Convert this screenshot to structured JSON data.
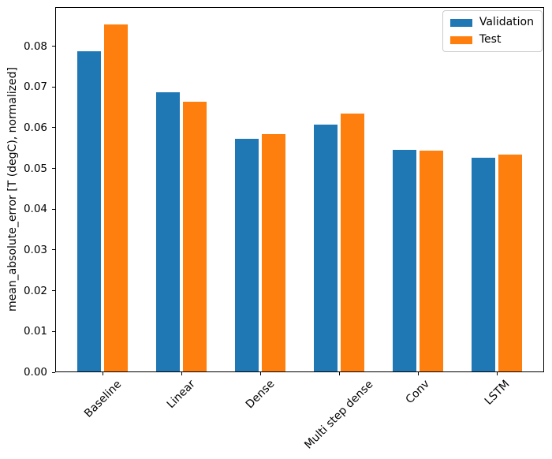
{
  "window": {
    "background": "#ffffff"
  },
  "chart_data": {
    "type": "bar",
    "title": "",
    "xlabel": "",
    "ylabel": "mean_absolute_error [T (degC), normalized]",
    "categories": [
      "Baseline",
      "Linear",
      "Dense",
      "Multi step dense",
      "Conv",
      "LSTM"
    ],
    "series": [
      {
        "name": "Validation",
        "color": "#1f77b4",
        "values": [
          0.0785,
          0.0686,
          0.0571,
          0.0606,
          0.0544,
          0.0524
        ]
      },
      {
        "name": "Test",
        "color": "#ff7f0e",
        "values": [
          0.0851,
          0.0662,
          0.0583,
          0.0633,
          0.0542,
          0.0533
        ]
      }
    ],
    "ylim": [
      0,
      0.0896
    ],
    "ytick_labels": [
      "0.00",
      "0.01",
      "0.02",
      "0.03",
      "0.04",
      "0.05",
      "0.06",
      "0.07",
      "0.08"
    ],
    "xtick_rotation_deg": 45,
    "grid": false,
    "legend": {
      "location": "upper right",
      "entries": [
        "Validation",
        "Test"
      ]
    },
    "axis_color": "#000000",
    "legend_border_color": "#cccccc"
  }
}
